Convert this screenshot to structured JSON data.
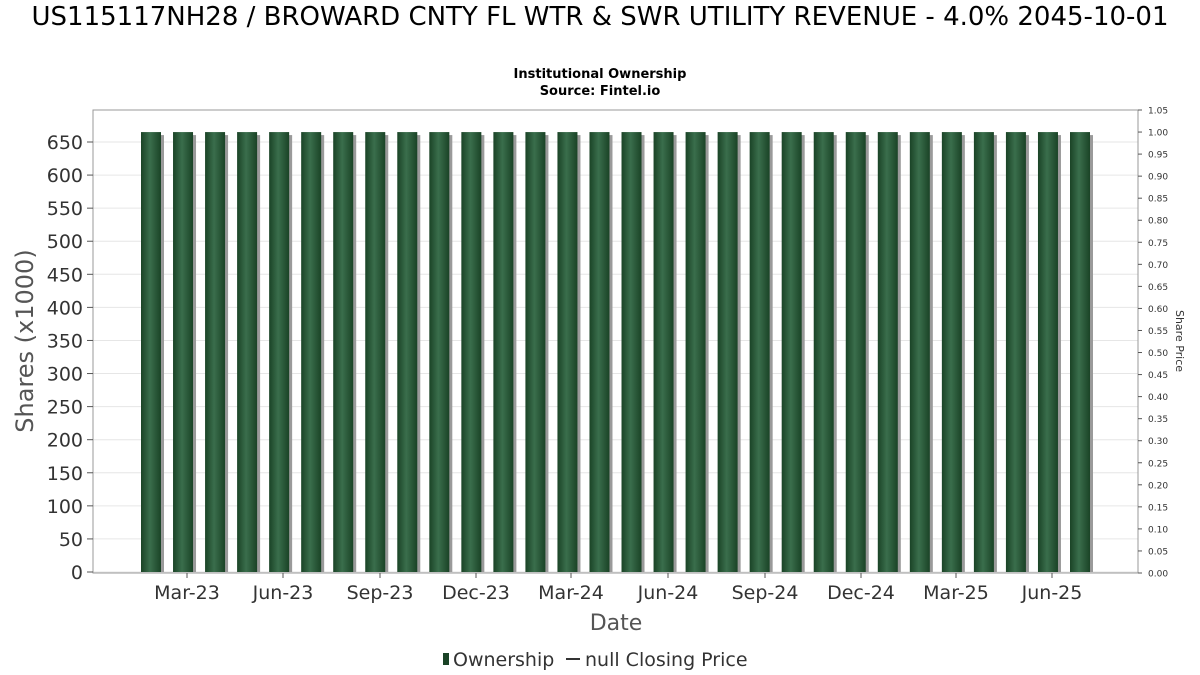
{
  "title": "US115117NH28 / BROWARD CNTY FL WTR & SWR UTILITY REVENUE - 4.0% 2045-10-01",
  "subtitle_1": "Institutional Ownership",
  "subtitle_2": "Source: Fintel.io",
  "colors": {
    "bar_dark": "#1a4326",
    "bar_light": "#3a6e4c",
    "shadow": "#9a9a9a",
    "grid": "#e6e6e6",
    "axis": "#999999"
  },
  "chart_data": {
    "type": "bar",
    "xlabel": "Date",
    "ylabel": "Shares (x1000)",
    "y2label": "Share Price",
    "ylim": [
      0,
      670
    ],
    "y2lim": [
      0,
      1.05
    ],
    "yticks": [
      0,
      50,
      100,
      150,
      200,
      250,
      300,
      350,
      400,
      450,
      500,
      550,
      600,
      650
    ],
    "y2ticks": [
      "0.00",
      "0.05",
      "0.10",
      "0.15",
      "0.20",
      "0.25",
      "0.30",
      "0.35",
      "0.40",
      "0.45",
      "0.50",
      "0.55",
      "0.60",
      "0.65",
      "0.70",
      "0.75",
      "0.80",
      "0.85",
      "0.90",
      "0.95",
      "1.00",
      "1.05"
    ],
    "x_tick_labels": [
      "Mar-23",
      "Jun-23",
      "Sep-23",
      "Dec-23",
      "Mar-24",
      "Jun-24",
      "Sep-24",
      "Dec-24",
      "Mar-25",
      "Jun-25"
    ],
    "grid": true,
    "legend_position": "bottom",
    "series": [
      {
        "name": "Ownership",
        "type": "bar",
        "values": [
          665,
          665,
          665,
          665,
          665,
          665,
          665,
          665,
          665,
          665,
          665,
          665,
          665,
          665,
          665,
          665,
          665,
          665,
          665,
          665,
          665,
          665,
          665,
          665,
          665,
          665,
          665,
          665,
          665,
          665
        ]
      },
      {
        "name": "null Closing Price",
        "type": "line",
        "values": []
      }
    ]
  }
}
